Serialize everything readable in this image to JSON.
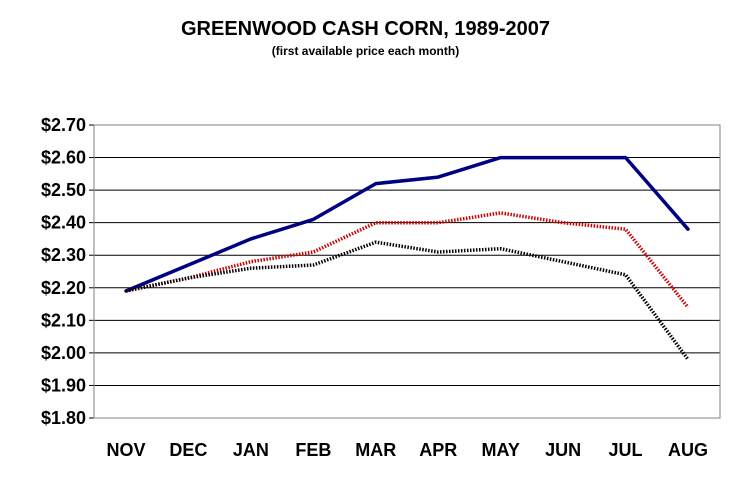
{
  "chart_data": {
    "type": "line",
    "title": "GREENWOOD CASH CORN, 1989-2007",
    "subtitle": "(first available price each month)",
    "xlabel": "",
    "ylabel": "",
    "categories": [
      "NOV",
      "DEC",
      "JAN",
      "FEB",
      "MAR",
      "APR",
      "MAY",
      "JUN",
      "JUL",
      "AUG"
    ],
    "ylim": [
      1.8,
      2.7
    ],
    "yticks": [
      "$1.80",
      "$1.90",
      "$2.00",
      "$2.10",
      "$2.20",
      "$2.30",
      "$2.40",
      "$2.50",
      "$2.60",
      "$2.70"
    ],
    "grid": true,
    "legend": "none",
    "series": [
      {
        "color": "#000080",
        "style": "solid",
        "values": [
          2.19,
          2.27,
          2.35,
          2.41,
          2.52,
          2.54,
          2.6,
          2.6,
          2.6,
          2.38
        ]
      },
      {
        "color": "#cc0000",
        "style": "dotted",
        "values": [
          2.19,
          2.23,
          2.28,
          2.31,
          2.4,
          2.4,
          2.43,
          2.4,
          2.38,
          2.14
        ]
      },
      {
        "color": "#000000",
        "style": "dotted",
        "values": [
          2.19,
          2.23,
          2.26,
          2.27,
          2.34,
          2.31,
          2.32,
          2.28,
          2.24,
          1.98
        ]
      }
    ]
  }
}
